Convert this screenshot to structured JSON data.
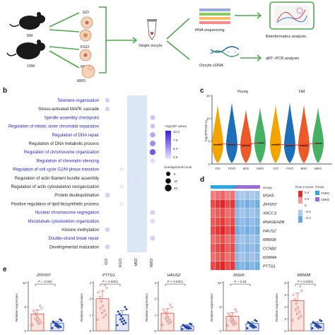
{
  "panel_a": {
    "label": "",
    "ages": [
      "6W",
      "10M"
    ],
    "stages": [
      "GO",
      "FGO",
      "MIO",
      "MIIO"
    ],
    "single_oocyte": "Single oocyte",
    "rna_seq": "RNA sequencing",
    "bioinformatics": "Bioinformatics analysis",
    "oocyte_cdna": "Oocyte cDNA",
    "qrt_pcr": "qRT–PCR analysis"
  },
  "panel_b": {
    "label": "b",
    "terms": [
      {
        "text": "Telomere organization",
        "highlight": true
      },
      {
        "text": "Stress-activated MAPK cascade",
        "highlight": false
      },
      {
        "text": "Spindle assembly checkpoint",
        "highlight": true
      },
      {
        "text": "Regulation of mitotic sister chromatid separation",
        "highlight": true
      },
      {
        "text": "Regulation of DNA repair",
        "highlight": true
      },
      {
        "text": "Regulation of DNA metabolic process",
        "highlight": false
      },
      {
        "text": "Regulation of chromosome organization",
        "highlight": true
      },
      {
        "text": "Regulation of chromatin silencing",
        "highlight": true
      },
      {
        "text": "Regulation of cell cycle G2/M phase transition",
        "highlight": true
      },
      {
        "text": "Regulation of actin filament bundle assembly",
        "highlight": false
      },
      {
        "text": "Regulation of actin cytoskeleton reorganization",
        "highlight": false
      },
      {
        "text": "Protein deubiquitination",
        "highlight": false
      },
      {
        "text": "Positive regulation of lipid biosynthetic process",
        "highlight": false
      },
      {
        "text": "Nuclear chromosome segregation",
        "highlight": true
      },
      {
        "text": "Microtubule cytoskeleton organization",
        "highlight": true
      },
      {
        "text": "Histone methylation",
        "highlight": false
      },
      {
        "text": "Double-strand break repair",
        "highlight": true
      },
      {
        "text": "Developmental maturation",
        "highlight": false
      }
    ],
    "columns": [
      "GO",
      "FGO",
      "MIO",
      "MIIO"
    ],
    "legend_color_title": "–log10(P value)",
    "legend_color_ticks": [
      "10.0",
      "7.5",
      "5.0",
      "2.5"
    ],
    "legend_size_title": "OverlapGeneCount",
    "legend_size_ticks": [
      "5",
      "10",
      "20"
    ],
    "highlight_color": "#2424c8"
  },
  "chart_data": [
    {
      "type": "scatter",
      "panel": "b",
      "x_categories": [
        "GO",
        "FGO",
        "MIO",
        "MIIO"
      ],
      "points": [
        {
          "term": 0,
          "col": 0,
          "neglogp": 3.0,
          "count": 6
        },
        {
          "term": 1,
          "col": 0,
          "neglogp": 3.0,
          "count": 6
        },
        {
          "term": 2,
          "col": 3,
          "neglogp": 3.5,
          "count": 7
        },
        {
          "term": 3,
          "col": 3,
          "neglogp": 3.5,
          "count": 7
        },
        {
          "term": 4,
          "col": 3,
          "neglogp": 4.5,
          "count": 10
        },
        {
          "term": 5,
          "col": 3,
          "neglogp": 5.5,
          "count": 12
        },
        {
          "term": 6,
          "col": 3,
          "neglogp": 7.5,
          "count": 14
        },
        {
          "term": 7,
          "col": 3,
          "neglogp": 2.5,
          "count": 6
        },
        {
          "term": 8,
          "col": 1,
          "neglogp": 2.0,
          "count": 5
        },
        {
          "term": 9,
          "col": 2,
          "neglogp": 2.5,
          "count": 5
        },
        {
          "term": 10,
          "col": 1,
          "neglogp": 2.0,
          "count": 5
        },
        {
          "term": 11,
          "col": 0,
          "neglogp": 3.0,
          "count": 8
        },
        {
          "term": 12,
          "col": 1,
          "neglogp": 2.0,
          "count": 5
        },
        {
          "term": 13,
          "col": 3,
          "neglogp": 3.0,
          "count": 8
        },
        {
          "term": 14,
          "col": 3,
          "neglogp": 2.5,
          "count": 8
        },
        {
          "term": 15,
          "col": 0,
          "neglogp": 3.0,
          "count": 7
        },
        {
          "term": 16,
          "col": 3,
          "neglogp": 3.0,
          "count": 8
        },
        {
          "term": 17,
          "col": 0,
          "neglogp": 3.0,
          "count": 7
        }
      ]
    },
    {
      "type": "violin",
      "panel": "c",
      "title_young": "Young",
      "title_old": "Old",
      "ylabel": "log2(FPKM+1)",
      "yticks": [
        0,
        5,
        10,
        15
      ],
      "ylim": [
        0,
        15
      ],
      "categories": [
        "GO",
        "FGO",
        "MIO",
        "MIIO"
      ],
      "colors": [
        "#f2a400",
        "#1d6fb8",
        "#ed5a2a",
        "#48b064"
      ],
      "young_medians": [
        4.2,
        4.2,
        4.0,
        4.6
      ],
      "old_medians": [
        4.2,
        4.0,
        4.0,
        4.5
      ],
      "young_max": [
        13.0,
        13.5,
        12.0,
        12.5
      ],
      "old_max": [
        13.0,
        13.5,
        13.0,
        12.5
      ]
    },
    {
      "type": "heatmap",
      "panel": "d",
      "genes": [
        "MSH5",
        "ZFP207",
        "XRCC3",
        "RNASEH2B",
        "HAUS2",
        "RBM38",
        "CCNB2",
        "KDM4A",
        "PTTG1"
      ],
      "group_label": "Group",
      "groups": [
        "YMIO",
        "OMIO"
      ],
      "n_ymio": 5,
      "n_omio": 5,
      "legend_title": "Row z-score",
      "legend_ticks": [
        "0.4",
        "0.2",
        "0",
        "–0.2",
        "–0.4"
      ],
      "group_colors": [
        "#28a8e0",
        "#9a6ad6"
      ],
      "pattern_ymio_high": [
        0.3,
        0.45,
        0.35,
        0.4,
        0.45,
        0.35,
        0.4,
        0.35,
        0.45
      ],
      "pattern_omio_low": [
        -0.3,
        -0.45,
        -0.35,
        -0.4,
        -0.45,
        -0.35,
        -0.4,
        -0.35,
        -0.45
      ]
    },
    {
      "type": "bar",
      "panel": "e",
      "ylabel": "Relative expression",
      "genes": [
        {
          "name": "ZFP207",
          "p": "P = 0.002",
          "ymax": 10,
          "yticks": [
            0,
            5,
            10
          ],
          "young": 3.5,
          "old": 1.6
        },
        {
          "name": "PTTG1",
          "p": "P < 0.0001",
          "ymax": 3,
          "yticks": [
            0,
            1,
            2,
            3
          ],
          "young": 2.0,
          "old": 1.0
        },
        {
          "name": "HAUS2",
          "p": "P < 0.0001",
          "ymax": 3,
          "yticks": [
            0,
            1,
            2,
            3
          ],
          "young": 1.1,
          "old": 0.3
        },
        {
          "name": "MSH5",
          "p": "P = 0.02",
          "ymax": 10,
          "yticks": [
            0,
            5,
            10
          ],
          "young": 3.0,
          "old": 1.5
        },
        {
          "name": "RBM38",
          "p": "P < 0.0001",
          "ymax": 8,
          "yticks": [
            0,
            2,
            4,
            6,
            8
          ],
          "young": 5.0,
          "old": 1.2
        }
      ],
      "colors": [
        "#dd4433",
        "#2244aa"
      ]
    }
  ],
  "panel_labels": {
    "c": "c",
    "d": "d",
    "e": "e"
  }
}
